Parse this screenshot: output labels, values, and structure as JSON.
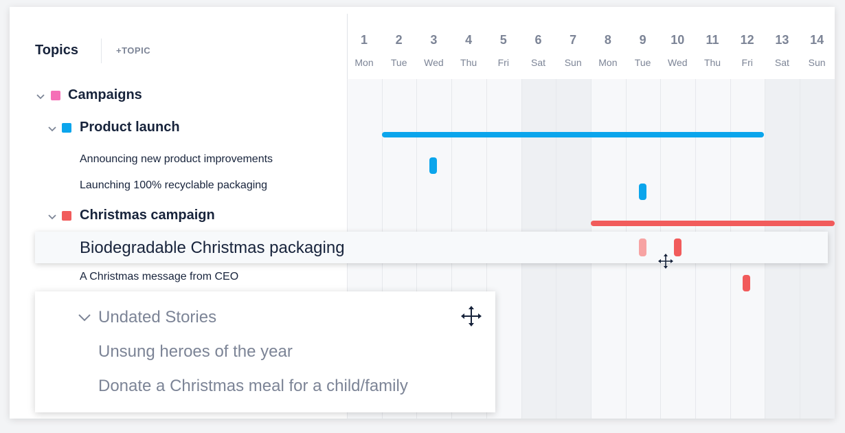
{
  "sidebar": {
    "title": "Topics",
    "add_topic_label": "+TOPIC"
  },
  "topics": [
    {
      "label": "Campaigns",
      "color": "#f56fb7",
      "level": 1
    },
    {
      "label": "Product launch",
      "color": "#0ba5ec",
      "level": 2
    },
    {
      "label": "Announcing new product improvements",
      "level": 3
    },
    {
      "label": "Launching 100% recyclable packaging",
      "level": 3
    },
    {
      "label": "Christmas campaign",
      "color": "#f15b5b",
      "level": 2
    },
    {
      "label": "Biodegradable Christmas packaging",
      "level": 3,
      "dragging": true
    },
    {
      "label": "A Christmas message from CEO",
      "level": 3
    }
  ],
  "calendar": {
    "days": [
      {
        "num": "1",
        "name": "Mon"
      },
      {
        "num": "2",
        "name": "Tue"
      },
      {
        "num": "3",
        "name": "Wed"
      },
      {
        "num": "4",
        "name": "Thu"
      },
      {
        "num": "5",
        "name": "Fri"
      },
      {
        "num": "6",
        "name": "Sat"
      },
      {
        "num": "7",
        "name": "Sun"
      },
      {
        "num": "8",
        "name": "Mon"
      },
      {
        "num": "9",
        "name": "Tue"
      },
      {
        "num": "10",
        "name": "Wed"
      },
      {
        "num": "11",
        "name": "Thu"
      },
      {
        "num": "12",
        "name": "Fri"
      },
      {
        "num": "13",
        "name": "Sat"
      },
      {
        "num": "14",
        "name": "Sun"
      }
    ],
    "weekend_days": [
      6,
      7,
      13,
      14
    ]
  },
  "undated": {
    "title": "Undated Stories",
    "items": [
      "Unsung heroes of the year",
      "Donate a Christmas meal for a child/family"
    ]
  },
  "colors": {
    "blue": "#0ba5ec",
    "red": "#f15b5b",
    "red_ghost": "#f7a3a3",
    "pink": "#f56fb7",
    "muted": "#7c8496"
  }
}
